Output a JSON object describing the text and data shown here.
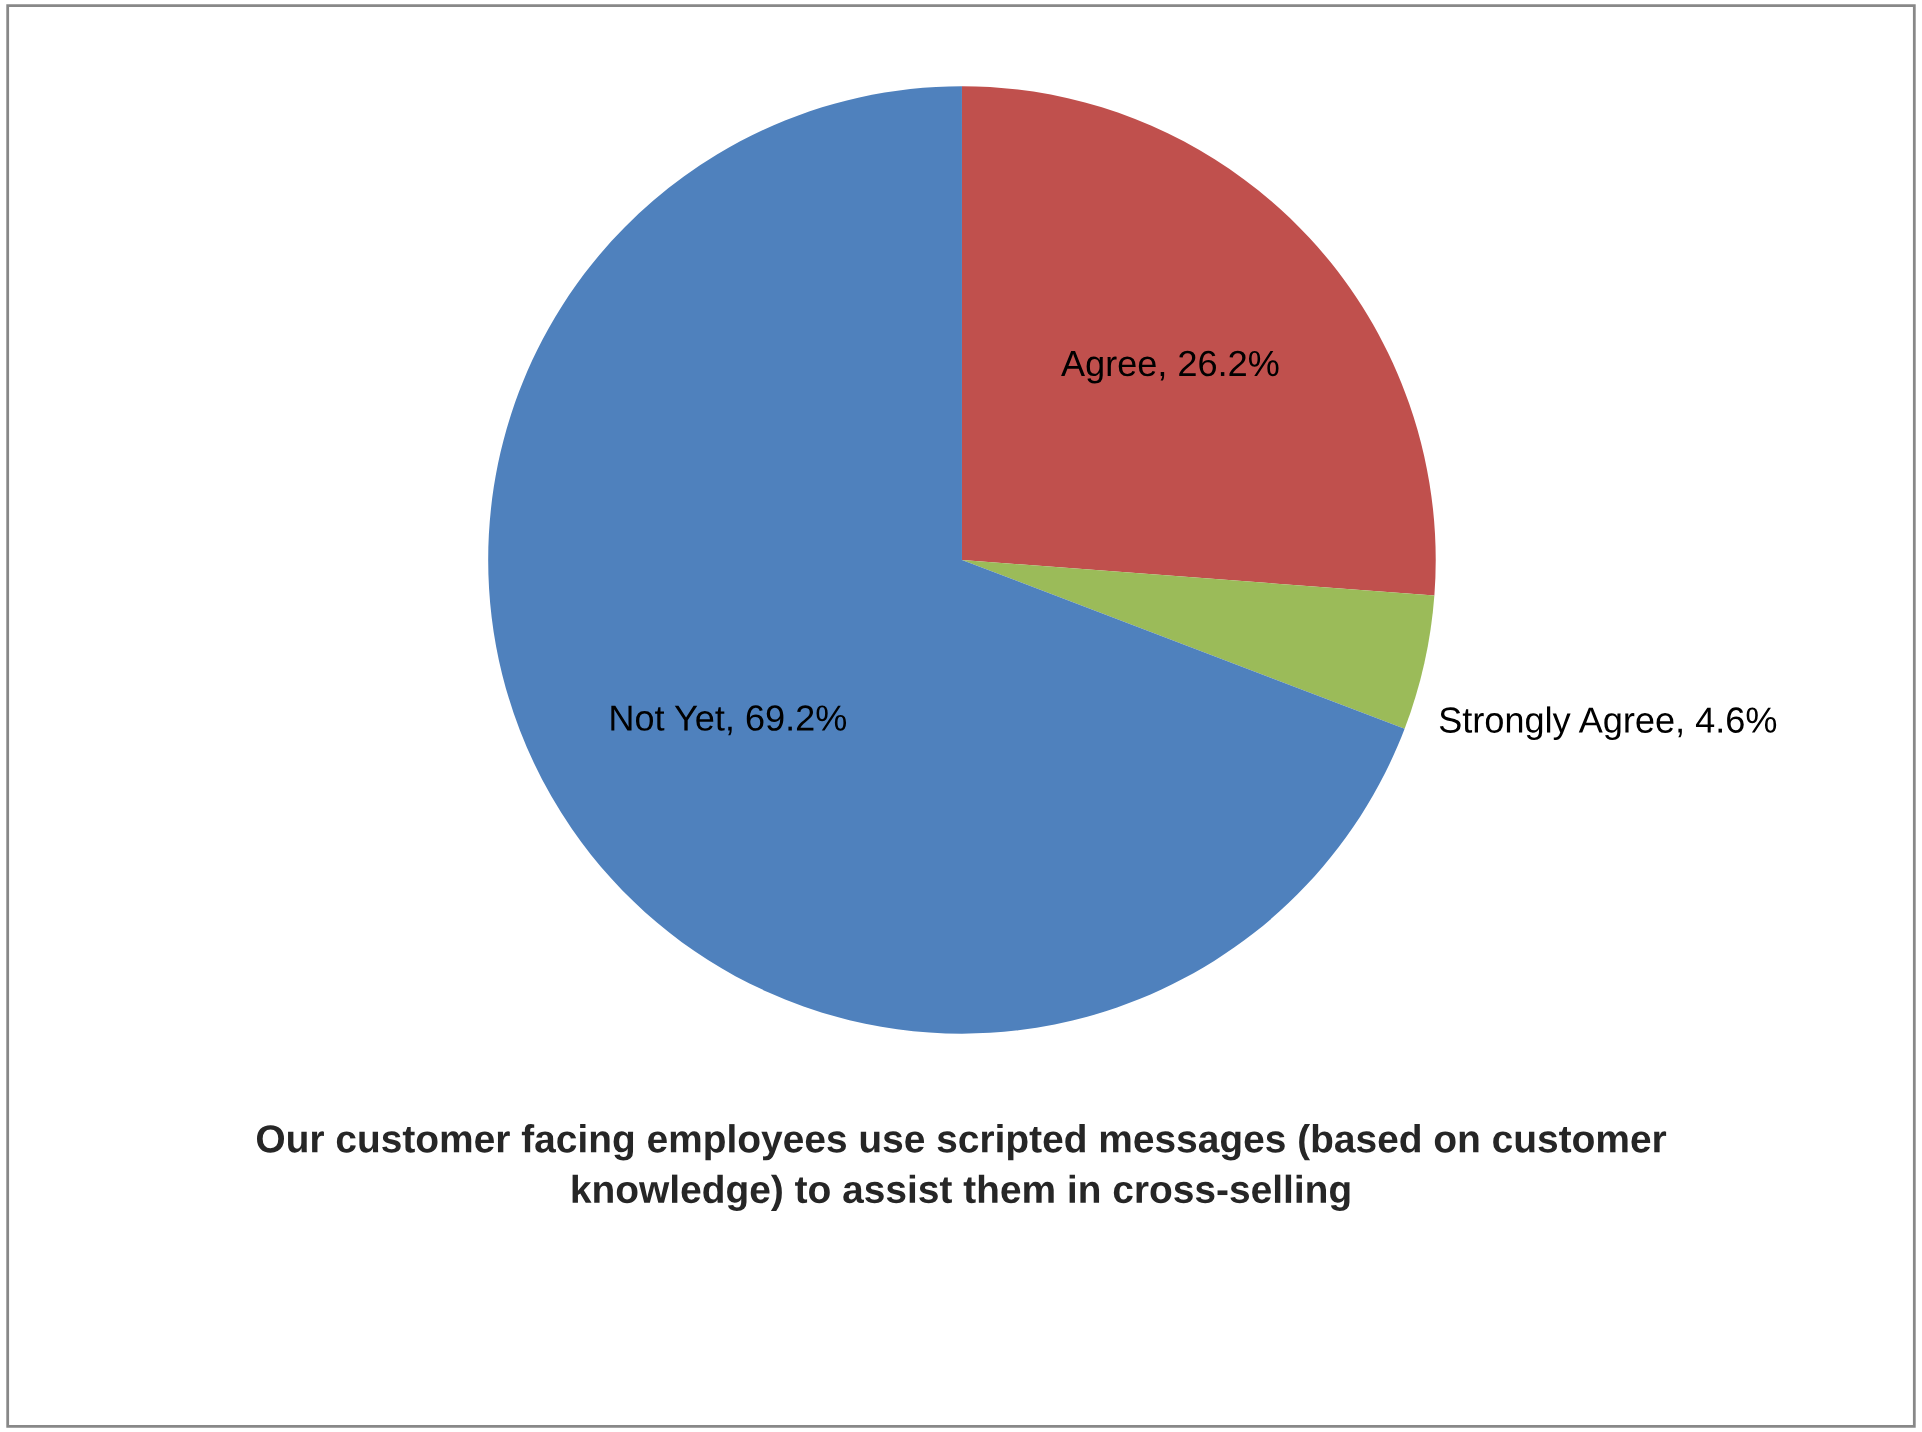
{
  "chart_data": {
    "type": "pie",
    "title": "Our customer facing employees use scripted messages (based on customer knowledge) to assist them in cross-selling",
    "categories": [
      "Agree",
      "Strongly Agree",
      "Not Yet"
    ],
    "values": [
      26.2,
      4.6,
      69.2
    ],
    "colors": [
      "#c0504d",
      "#9bbb59",
      "#4f81bd"
    ],
    "value_labels": [
      "26.2%",
      "4.6%",
      "69.2%"
    ],
    "legend": false
  }
}
